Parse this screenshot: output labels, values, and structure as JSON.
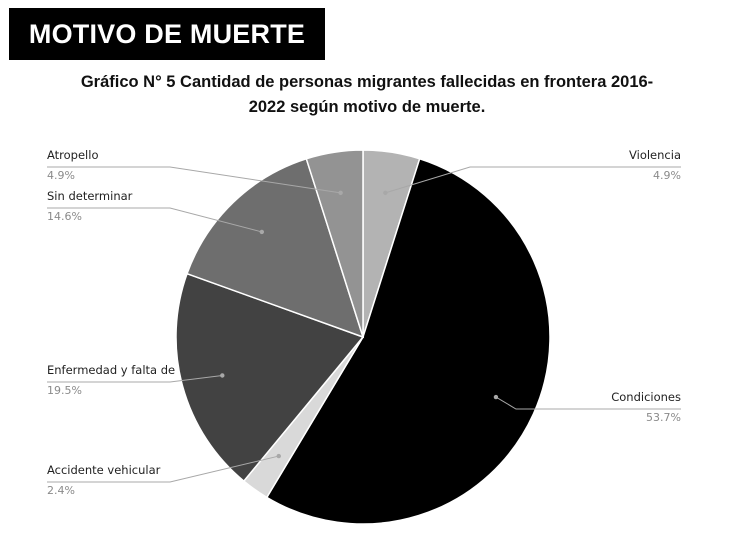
{
  "banner": {
    "text": "MOTIVO DE MUERTE"
  },
  "chart_data": {
    "type": "pie",
    "title_line1": "Gráfico N° 5 Cantidad de personas migrantes fallecidas en frontera 2016-",
    "title_line2": "2022 según motivo de muerte.",
    "slices": [
      {
        "label": "Violencia",
        "value": 4.9,
        "value_label": "4.9%",
        "color": "#b3b3b3",
        "side": "right"
      },
      {
        "label": "Condiciones",
        "value": 53.7,
        "value_label": "53.7%",
        "color": "#000000",
        "side": "right"
      },
      {
        "label": "Accidente vehicular",
        "value": 2.4,
        "value_label": "2.4%",
        "color": "#d9d9d9",
        "side": "left"
      },
      {
        "label": "Enfermedad y falta de",
        "value": 19.5,
        "value_label": "19.5%",
        "color": "#424242",
        "side": "left"
      },
      {
        "label": "Sin determinar",
        "value": 14.6,
        "value_label": "14.6%",
        "color": "#6e6e6e",
        "side": "left"
      },
      {
        "label": "Atropello",
        "value": 4.9,
        "value_label": "4.9%",
        "color": "#939393",
        "side": "left"
      }
    ]
  }
}
